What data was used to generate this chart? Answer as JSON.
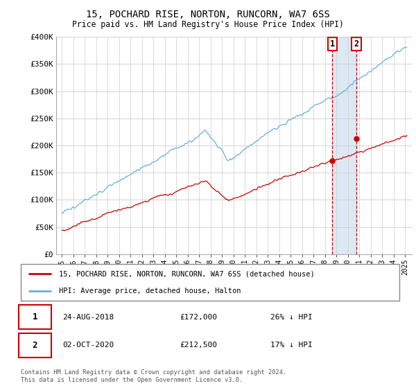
{
  "title": "15, POCHARD RISE, NORTON, RUNCORN, WA7 6SS",
  "subtitle": "Price paid vs. HM Land Registry's House Price Index (HPI)",
  "ylim": [
    0,
    400000
  ],
  "yticks": [
    0,
    50000,
    100000,
    150000,
    200000,
    250000,
    300000,
    350000,
    400000
  ],
  "ytick_labels": [
    "£0",
    "£50K",
    "£100K",
    "£150K",
    "£200K",
    "£250K",
    "£300K",
    "£350K",
    "£400K"
  ],
  "hpi_color": "#6aaed6",
  "price_color": "#cc0000",
  "sale1_x": 2018.64,
  "sale1_price": 172000,
  "sale1_date": "24-AUG-2018",
  "sale1_label": "26% ↓ HPI",
  "sale2_x": 2020.75,
  "sale2_price": 212500,
  "sale2_date": "02-OCT-2020",
  "sale2_label": "17% ↓ HPI",
  "legend_property": "15, POCHARD RISE, NORTON, RUNCORN, WA7 6SS (detached house)",
  "legend_hpi": "HPI: Average price, detached house, Halton",
  "footnote": "Contains HM Land Registry data © Crown copyright and database right 2024.\nThis data is licensed under the Open Government Licence v3.0.",
  "highlight_color": "#dce9f5",
  "marker_box_color": "#cc0000",
  "vline_color": "#cc0000"
}
